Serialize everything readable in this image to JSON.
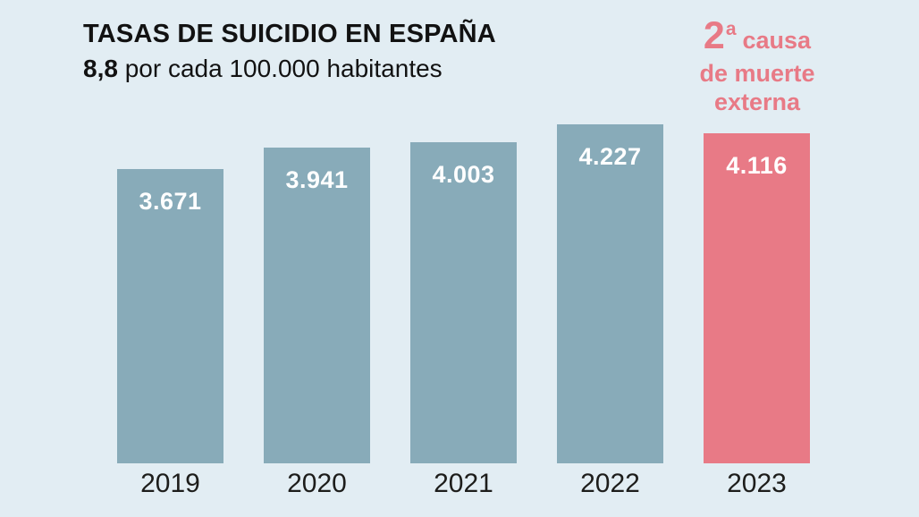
{
  "header": {
    "title": "TASAS DE SUICIDIO EN ESPAÑA",
    "subtitle_bold": "8,8",
    "subtitle_rest": " por cada 100.000 habitantes"
  },
  "annotation": {
    "rank_number": "2",
    "rank_ordinal": "a",
    "line1_word": "causa",
    "line2": "de muerte",
    "line3": "externa",
    "color": "#e87a86"
  },
  "chart_data": {
    "type": "bar",
    "title": "TASAS DE SUICIDIO EN ESPAÑA",
    "subtitle": "8,8 por cada 100.000 habitantes",
    "categories": [
      "2019",
      "2020",
      "2021",
      "2022",
      "2023"
    ],
    "values": [
      3671,
      3941,
      4003,
      4227,
      4116
    ],
    "value_labels": [
      "3.671",
      "3.941",
      "4.003",
      "4.227",
      "4.116"
    ],
    "highlight_index": 4,
    "annotation": "2ª causa de muerte externa",
    "bar_color": "#88abb9",
    "highlight_color": "#e87a86",
    "background_color": "#e2edf3",
    "value_label_color": "#ffffff",
    "text_color": "#121212",
    "ylim": [
      0,
      4400
    ],
    "grid": false,
    "axis_lines": false
  }
}
